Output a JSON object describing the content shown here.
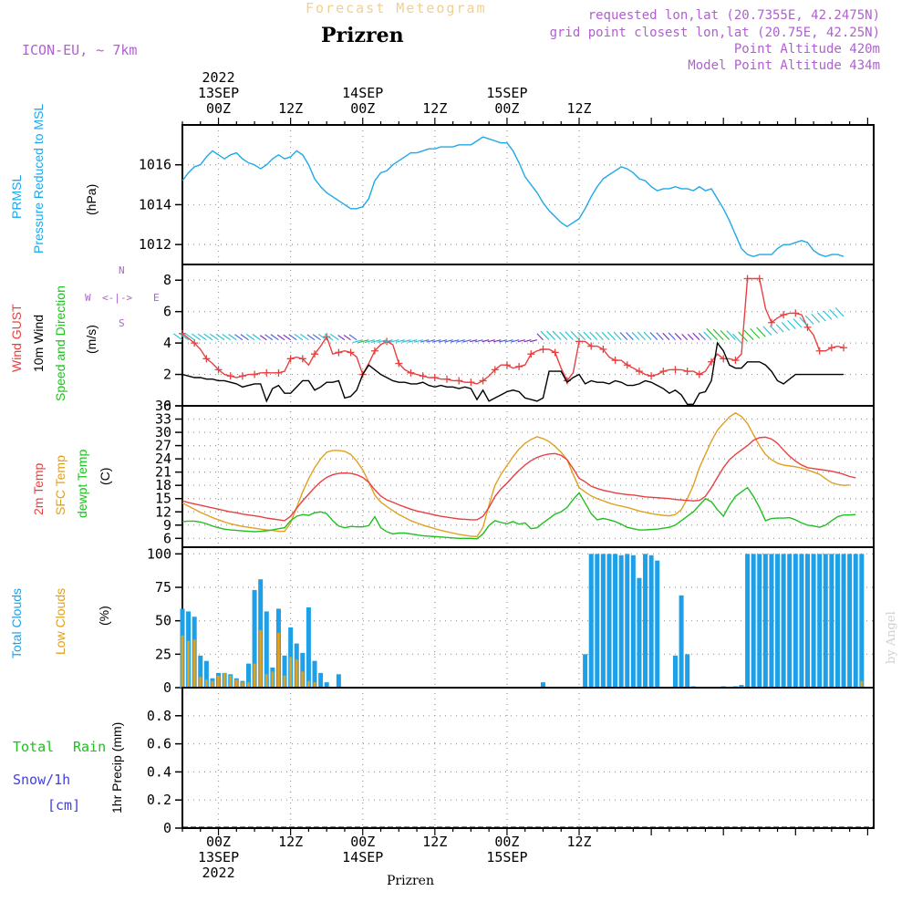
{
  "header": {
    "title_faint": "Forecast Meteogram",
    "location": "Prizren",
    "model": "ICON-EU, ~ 7km",
    "requested": "requested lon,lat (20.7355E, 42.2475N)",
    "grid_point": "grid point closest lon,lat (20.75E, 42.25N)",
    "point_altitude": "Point Altitude 420m",
    "model_altitude": "Model Point Altitude 434m",
    "credit": "by Angel",
    "bottom_label": "Prizren"
  },
  "time_axis": {
    "top": [
      {
        "lines": [
          "2022",
          "13SEP",
          "00Z"
        ]
      },
      {
        "lines": [
          "12Z"
        ]
      },
      {
        "lines": [
          "14SEP",
          "00Z"
        ]
      },
      {
        "lines": [
          "12Z"
        ]
      },
      {
        "lines": [
          "15SEP",
          "00Z"
        ]
      },
      {
        "lines": [
          "12Z"
        ]
      }
    ],
    "bottom": [
      {
        "lines": [
          "00Z",
          "13SEP",
          "2022"
        ]
      },
      {
        "lines": [
          "12Z"
        ]
      },
      {
        "lines": [
          "00Z",
          "14SEP"
        ]
      },
      {
        "lines": [
          "12Z"
        ]
      },
      {
        "lines": [
          "00Z",
          "15SEP"
        ]
      },
      {
        "lines": [
          "12Z"
        ]
      }
    ]
  },
  "panel_labels": {
    "pressure": {
      "l1": "PRMSL",
      "l2": "Pressure Reduced to MSL",
      "unit": "(hPa)"
    },
    "wind": {
      "l1": "Wind GUST",
      "l2": "10m Wind",
      "l3": "Speed and Direction",
      "unit": "(m/s)",
      "compass_n": "N",
      "compass_s": "S",
      "compass_w": "W",
      "compass_e": "E",
      "compass_arrows": "<-|->"
    },
    "temp": {
      "l1": "2m Temp",
      "l2": "SFC Temp",
      "l3": "dewpt Temp",
      "unit": "(C)"
    },
    "clouds": {
      "l1": "Total Clouds",
      "l2": "Low Clouds",
      "unit": "(%)"
    },
    "precip": {
      "l1": "Total",
      "l1b": "Rain",
      "l2": "Snow/1h",
      "l3": "[cm]",
      "unit": "1hr Precip (mm)"
    }
  },
  "colors": {
    "pressure": "#1ea8e8",
    "gust": "#e84040",
    "wind": "#000000",
    "t2m": "#e84040",
    "sfc": "#e0a020",
    "dewpt": "#20c020",
    "total_clouds": "#1ea0e8",
    "low_clouds": "#e0a020",
    "rain": "#20c020",
    "snow": "#4040e0",
    "title_purple": "#b060d0"
  },
  "chart_data": [
    {
      "type": "line",
      "name": "PRMSL",
      "ylim": [
        1011,
        1018
      ],
      "yticks": [
        1012,
        1014,
        1016
      ],
      "x_start_hour": -6,
      "x_step_hours": 1,
      "values": [
        1015.2,
        1015.6,
        1015.9,
        1016.0,
        1016.4,
        1016.7,
        1016.5,
        1016.3,
        1016.5,
        1016.6,
        1016.3,
        1016.1,
        1016.0,
        1015.8,
        1016.0,
        1016.3,
        1016.5,
        1016.3,
        1016.4,
        1016.7,
        1016.5,
        1016.0,
        1015.3,
        1014.9,
        1014.6,
        1014.4,
        1014.2,
        1014.0,
        1013.8,
        1013.8,
        1013.9,
        1014.3,
        1015.2,
        1015.6,
        1015.7,
        1016.0,
        1016.2,
        1016.4,
        1016.6,
        1016.6,
        1016.7,
        1016.8,
        1016.8,
        1016.9,
        1016.9,
        1016.9,
        1017.0,
        1017.0,
        1017.0,
        1017.2,
        1017.4,
        1017.3,
        1017.2,
        1017.1,
        1017.1,
        1016.7,
        1016.1,
        1015.4,
        1015.0,
        1014.6,
        1014.1,
        1013.7,
        1013.4,
        1013.1,
        1012.9,
        1013.1,
        1013.3,
        1013.8,
        1014.4,
        1014.9,
        1015.3,
        1015.5,
        1015.7,
        1015.9,
        1015.8,
        1015.6,
        1015.3,
        1015.2,
        1014.9,
        1014.7,
        1014.8,
        1014.8,
        1014.9,
        1014.8,
        1014.8,
        1014.7,
        1014.9,
        1014.7,
        1014.8,
        1014.3,
        1013.8,
        1013.2,
        1012.5,
        1011.8,
        1011.5,
        1011.4,
        1011.5,
        1011.5,
        1011.5,
        1011.8,
        1012.0,
        1012.0,
        1012.1,
        1012.2,
        1012.1,
        1011.7,
        1011.5,
        1011.4,
        1011.5,
        1011.5,
        1011.4
      ]
    },
    {
      "type": "line",
      "name": "Wind",
      "ylim": [
        0,
        9
      ],
      "yticks": [
        0,
        2,
        4,
        6,
        8
      ],
      "x_start_hour": -6,
      "x_step_hours": 1,
      "series": [
        {
          "name": "Wind GUST",
          "markers": "+",
          "values": [
            4.6,
            4.3,
            4.0,
            3.6,
            3.0,
            2.7,
            2.3,
            2.0,
            1.9,
            1.8,
            1.9,
            2.0,
            2.0,
            2.1,
            2.1,
            2.1,
            2.1,
            2.2,
            3.0,
            3.1,
            3.0,
            2.6,
            3.3,
            3.8,
            4.4,
            3.3,
            3.4,
            3.5,
            3.4,
            3.1,
            2.0,
            2.7,
            3.5,
            3.9,
            4.1,
            3.9,
            2.7,
            2.3,
            2.1,
            2.0,
            1.9,
            1.8,
            1.8,
            1.7,
            1.7,
            1.6,
            1.6,
            1.5,
            1.5,
            1.4,
            1.6,
            1.9,
            2.3,
            2.6,
            2.6,
            2.4,
            2.5,
            2.6,
            3.3,
            3.5,
            3.6,
            3.6,
            3.4,
            2.4,
            1.6,
            2.1,
            4.1,
            4.1,
            3.8,
            3.8,
            3.6,
            3.1,
            2.9,
            2.9,
            2.6,
            2.4,
            2.2,
            2.0,
            1.9,
            2.0,
            2.2,
            2.3,
            2.3,
            2.3,
            2.2,
            2.2,
            2.0,
            2.2,
            2.8,
            3.3,
            3.0,
            3.0,
            2.9,
            3.3,
            8.1,
            8.1,
            8.1,
            6.2,
            5.3,
            5.6,
            5.8,
            5.9,
            5.9,
            5.8,
            5.0,
            4.5,
            3.5,
            3.5,
            3.7,
            3.8,
            3.7
          ]
        },
        {
          "name": "10m Wind",
          "values": [
            2.0,
            1.9,
            1.8,
            1.8,
            1.7,
            1.7,
            1.6,
            1.6,
            1.5,
            1.4,
            1.2,
            1.3,
            1.4,
            1.4,
            0.3,
            1.1,
            1.3,
            0.8,
            0.8,
            1.2,
            1.6,
            1.6,
            1.0,
            1.2,
            1.5,
            1.5,
            1.6,
            0.5,
            0.6,
            1.0,
            2.0,
            2.6,
            2.3,
            2.0,
            1.8,
            1.6,
            1.5,
            1.5,
            1.4,
            1.4,
            1.5,
            1.3,
            1.2,
            1.3,
            1.2,
            1.2,
            1.1,
            1.2,
            1.1,
            0.4,
            1.0,
            0.3,
            0.5,
            0.7,
            0.9,
            1.0,
            0.9,
            0.5,
            0.4,
            0.3,
            0.5,
            2.2,
            2.2,
            2.2,
            1.5,
            1.8,
            2.0,
            1.4,
            1.6,
            1.5,
            1.5,
            1.4,
            1.6,
            1.5,
            1.3,
            1.3,
            1.4,
            1.6,
            1.5,
            1.3,
            1.1,
            0.8,
            1.0,
            0.7,
            0.1,
            0.1,
            0.8,
            0.9,
            1.6,
            4.0,
            3.5,
            2.6,
            2.4,
            2.4,
            2.8,
            2.8,
            2.8,
            2.6,
            2.2,
            1.6,
            1.4,
            1.7,
            2.0,
            2.0,
            2.0,
            2.0,
            2.0,
            2.0,
            2.0,
            2.0,
            2.0
          ]
        }
      ]
    },
    {
      "type": "line",
      "name": "Temperature",
      "ylim": [
        4,
        36
      ],
      "yticks": [
        6,
        9,
        12,
        15,
        18,
        21,
        24,
        27,
        30,
        33,
        36
      ],
      "x_start_hour": -6,
      "x_step_hours": 1,
      "series": [
        {
          "name": "2m Temp",
          "values": [
            14.5,
            14.1,
            13.8,
            13.5,
            13.2,
            12.9,
            12.6,
            12.3,
            12.0,
            11.8,
            11.5,
            11.3,
            11.1,
            10.9,
            10.6,
            10.4,
            10.2,
            10.0,
            11.0,
            12.8,
            14.5,
            16.0,
            17.5,
            18.8,
            19.8,
            20.4,
            20.7,
            20.8,
            20.7,
            20.4,
            19.8,
            18.7,
            17.0,
            15.6,
            14.7,
            14.2,
            13.6,
            13.1,
            12.6,
            12.2,
            11.9,
            11.6,
            11.3,
            11.0,
            10.8,
            10.6,
            10.4,
            10.3,
            10.2,
            10.2,
            11.0,
            13.0,
            15.5,
            17.2,
            18.5,
            20.0,
            21.4,
            22.6,
            23.6,
            24.3,
            24.8,
            25.1,
            25.2,
            24.8,
            23.8,
            21.8,
            19.6,
            18.8,
            17.8,
            17.3,
            16.9,
            16.6,
            16.3,
            16.1,
            15.9,
            15.8,
            15.6,
            15.4,
            15.3,
            15.2,
            15.1,
            15.0,
            14.8,
            14.7,
            14.6,
            14.5,
            14.6,
            15.5,
            17.5,
            19.8,
            22.0,
            23.8,
            25.0,
            26.0,
            27.0,
            28.2,
            28.8,
            28.9,
            28.5,
            27.5,
            26.0,
            24.6,
            23.5,
            22.6,
            22.0,
            21.8,
            21.6,
            21.4,
            21.2,
            20.9,
            20.5,
            20.0,
            19.7
          ]
        },
        {
          "name": "SFC Temp",
          "values": [
            14.0,
            13.3,
            12.6,
            11.9,
            11.3,
            10.7,
            10.2,
            9.7,
            9.3,
            9.0,
            8.7,
            8.5,
            8.3,
            8.1,
            7.9,
            7.8,
            7.6,
            7.6,
            9.5,
            13.0,
            16.5,
            19.5,
            22.0,
            24.0,
            25.5,
            25.9,
            25.9,
            25.7,
            25.0,
            23.5,
            21.5,
            18.8,
            15.8,
            14.2,
            13.2,
            12.3,
            11.4,
            10.7,
            10.0,
            9.5,
            9.0,
            8.6,
            8.2,
            7.8,
            7.5,
            7.2,
            6.9,
            6.7,
            6.5,
            6.4,
            8.5,
            13.5,
            18.0,
            20.5,
            22.5,
            24.5,
            26.2,
            27.5,
            28.4,
            29.0,
            28.6,
            27.9,
            26.8,
            25.5,
            23.8,
            20.5,
            17.5,
            16.5,
            15.6,
            15.0,
            14.5,
            14.0,
            13.6,
            13.3,
            13.0,
            12.6,
            12.2,
            11.9,
            11.6,
            11.4,
            11.2,
            11.1,
            11.4,
            12.5,
            15.0,
            18.0,
            22.0,
            25.0,
            28.0,
            30.5,
            32.0,
            33.5,
            34.4,
            33.6,
            32.0,
            29.5,
            27.0,
            25.0,
            23.8,
            23.0,
            22.6,
            22.4,
            22.2,
            21.9,
            21.5,
            21.0,
            20.5,
            19.5,
            18.6,
            18.2,
            18.0,
            18.1
          ]
        },
        {
          "name": "dewpt Temp",
          "values": [
            9.8,
            9.9,
            9.9,
            9.7,
            9.3,
            8.8,
            8.4,
            8.1,
            7.9,
            7.8,
            7.7,
            7.6,
            7.5,
            7.6,
            7.7,
            7.9,
            8.2,
            8.4,
            10.0,
            11.0,
            11.4,
            11.2,
            11.8,
            12.0,
            11.6,
            10.0,
            8.8,
            8.4,
            8.7,
            8.6,
            8.6,
            8.9,
            10.9,
            8.4,
            7.5,
            7.0,
            7.2,
            7.2,
            7.0,
            6.8,
            6.6,
            6.5,
            6.4,
            6.3,
            6.2,
            6.1,
            6.0,
            6.0,
            6.0,
            5.9,
            7.0,
            8.9,
            10.0,
            9.6,
            9.3,
            9.8,
            9.2,
            9.5,
            8.2,
            8.4,
            9.5,
            10.5,
            11.5,
            12.0,
            13.0,
            14.8,
            16.3,
            14.0,
            11.6,
            10.2,
            10.5,
            10.2,
            9.8,
            9.2,
            8.5,
            8.2,
            7.9,
            7.9,
            8.0,
            8.1,
            8.3,
            8.5,
            9.0,
            10.0,
            11.0,
            12.0,
            13.5,
            15.0,
            14.3,
            12.5,
            11.0,
            13.5,
            15.5,
            16.5,
            17.5,
            15.5,
            13.0,
            10.0,
            10.5,
            10.6,
            10.6,
            10.7,
            10.2,
            9.5,
            9.0,
            8.8,
            8.5,
            9.0,
            10.0,
            10.9,
            11.3,
            11.3,
            11.4
          ]
        }
      ]
    },
    {
      "type": "bar",
      "name": "Clouds",
      "ylim": [
        0,
        105
      ],
      "yticks": [
        0,
        25,
        50,
        75,
        100
      ],
      "x_start_hour": -6,
      "x_step_hours": 1,
      "series": [
        {
          "name": "Total Clouds",
          "values": [
            59,
            57,
            53,
            24,
            20,
            7,
            11,
            11,
            10,
            7,
            5,
            18,
            73,
            81,
            57,
            15,
            59,
            24,
            45,
            33,
            26,
            60,
            20,
            11,
            4,
            0,
            10,
            0,
            0,
            0,
            0,
            0,
            0,
            0,
            0,
            0,
            0,
            0,
            0,
            0,
            0,
            0,
            0,
            0,
            0,
            0,
            0,
            0,
            0,
            0,
            0,
            0,
            0,
            0,
            0,
            0,
            0,
            0,
            0,
            0,
            4,
            0,
            0,
            0,
            0,
            0,
            0,
            25,
            100,
            100,
            100,
            100,
            100,
            99,
            100,
            99,
            82,
            100,
            99,
            95,
            0,
            0,
            24,
            69,
            25,
            1,
            0,
            0,
            0,
            0,
            1,
            0,
            1,
            2,
            100,
            100,
            100,
            100,
            100,
            100,
            100,
            100,
            100,
            100,
            100,
            100,
            100,
            100,
            100,
            100,
            100,
            100,
            100,
            100
          ]
        },
        {
          "name": "Low Clouds",
          "values": [
            39,
            35,
            36,
            8,
            6,
            5,
            9,
            11,
            9,
            6,
            4,
            4,
            18,
            43,
            10,
            12,
            41,
            9,
            23,
            21,
            12,
            5,
            4,
            0,
            0,
            0,
            0,
            0,
            0,
            0,
            0,
            0,
            0,
            0,
            0,
            0,
            0,
            0,
            0,
            0,
            0,
            0,
            0,
            0,
            0,
            0,
            0,
            0,
            0,
            0,
            0,
            0,
            0,
            0,
            0,
            0,
            0,
            0,
            0,
            0,
            0,
            0,
            0,
            0,
            0,
            0,
            0,
            0,
            0,
            0,
            0,
            0,
            0,
            0,
            0,
            0,
            0,
            0,
            0,
            0,
            0,
            0,
            0,
            0,
            0,
            0,
            0,
            0,
            0,
            0,
            0,
            0,
            0,
            0,
            0,
            0,
            0,
            0,
            0,
            0,
            0,
            0,
            0,
            0,
            0,
            0,
            0,
            0,
            0,
            0,
            0,
            0,
            0,
            5
          ]
        }
      ]
    },
    {
      "type": "bar",
      "name": "Precipitation",
      "ylim": [
        0,
        1.0
      ],
      "yticks": [
        0,
        0.2,
        0.4,
        0.6,
        0.8
      ],
      "ytick_labels": [
        "0",
        "0.2",
        "0.4",
        "0.6",
        "0.8"
      ],
      "x_start_hour": -6,
      "x_step_hours": 1,
      "series": [
        {
          "name": "Total Rain",
          "values": []
        },
        {
          "name": "Snow/1h",
          "values": []
        }
      ]
    }
  ]
}
